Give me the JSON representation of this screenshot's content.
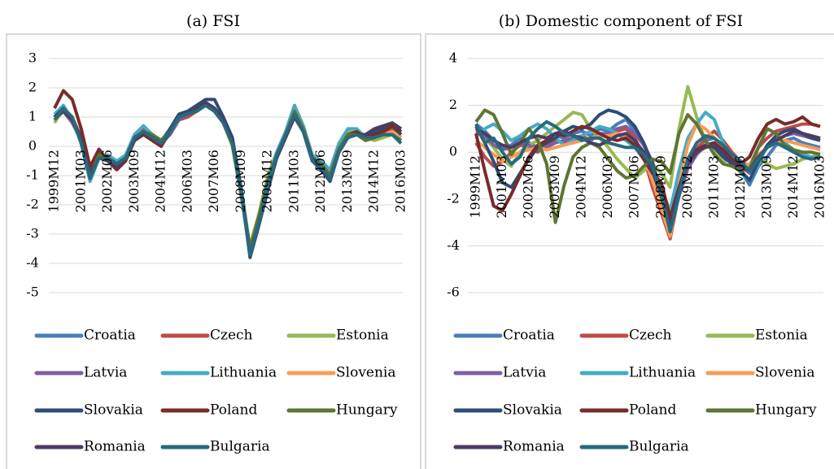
{
  "chart_data": [
    {
      "type": "line",
      "title": "(a) FSI",
      "categories": [
        "1999M12",
        null,
        null,
        "2001M03",
        null,
        null,
        "2002M06",
        null,
        null,
        "2003M09",
        null,
        null,
        "2004M12",
        null,
        null,
        "2006M03",
        null,
        null,
        "2007M06",
        null,
        null,
        "2008M09",
        null,
        null,
        "2009M12",
        null,
        null,
        "2011M03",
        null,
        null,
        "2012M06",
        null,
        null,
        "2013M09",
        null,
        null,
        "2014M12",
        null,
        null,
        "2016M03"
      ],
      "ylim": [
        -5,
        3
      ],
      "yticks": [
        -5,
        -4,
        -3,
        -2,
        -1,
        0,
        1,
        2,
        3
      ],
      "grid": true,
      "series": [
        {
          "name": "Croatia",
          "color": "#4a7ebb",
          "values": [
            1.0,
            1.3,
            0.9,
            0.2,
            -1.0,
            -0.3,
            -0.4,
            -0.6,
            -0.4,
            0.3,
            0.5,
            0.3,
            0.1,
            0.5,
            1.0,
            1.1,
            1.3,
            1.5,
            1.3,
            0.9,
            0.2,
            -1.5,
            -3.6,
            -2.5,
            -1.3,
            -0.3,
            0.4,
            1.2,
            0.6,
            -0.4,
            -0.6,
            -1.0,
            -0.1,
            0.4,
            0.5,
            0.2,
            0.3,
            0.4,
            0.5,
            0.3
          ]
        },
        {
          "name": "Czech",
          "color": "#be4b48",
          "values": [
            0.9,
            1.2,
            1.0,
            0.3,
            -0.9,
            -0.2,
            -0.5,
            -0.7,
            -0.3,
            0.2,
            0.6,
            0.2,
            0.0,
            0.6,
            0.9,
            1.0,
            1.2,
            1.4,
            1.2,
            0.8,
            0.1,
            -1.6,
            -3.5,
            -2.4,
            -1.2,
            -0.4,
            0.5,
            1.1,
            0.5,
            -0.3,
            -0.7,
            -1.1,
            -0.2,
            0.3,
            0.4,
            0.3,
            0.4,
            0.5,
            0.6,
            0.4
          ]
        },
        {
          "name": "Estonia",
          "color": "#98b954",
          "values": [
            0.8,
            1.3,
            1.0,
            0.1,
            -1.1,
            -0.4,
            -0.3,
            -0.5,
            -0.5,
            0.4,
            0.7,
            0.4,
            0.1,
            0.5,
            1.0,
            1.2,
            1.3,
            1.4,
            1.3,
            0.8,
            0.0,
            -1.7,
            -3.4,
            -2.3,
            -1.0,
            -0.2,
            0.5,
            1.4,
            0.7,
            -0.3,
            -0.5,
            -0.9,
            0.0,
            0.5,
            0.5,
            0.3,
            0.2,
            0.3,
            0.4,
            0.2
          ]
        },
        {
          "name": "Latvia",
          "color": "#7d5fa0",
          "values": [
            1.0,
            1.2,
            0.8,
            0.2,
            -1.0,
            -0.3,
            -0.5,
            -0.7,
            -0.4,
            0.2,
            0.4,
            0.3,
            0.1,
            0.4,
            0.9,
            1.1,
            1.3,
            1.5,
            1.2,
            0.8,
            0.1,
            -1.6,
            -3.7,
            -2.6,
            -1.4,
            -0.4,
            0.3,
            1.1,
            0.5,
            -0.5,
            -0.7,
            -1.1,
            -0.2,
            0.3,
            0.4,
            0.3,
            0.5,
            0.6,
            0.8,
            0.5
          ]
        },
        {
          "name": "Lithuania",
          "color": "#46aac5",
          "values": [
            1.1,
            1.4,
            0.9,
            0.1,
            -1.2,
            -0.4,
            -0.3,
            -0.5,
            -0.3,
            0.4,
            0.7,
            0.4,
            0.2,
            0.6,
            1.0,
            1.1,
            1.2,
            1.4,
            1.3,
            0.9,
            0.3,
            -1.4,
            -3.5,
            -2.4,
            -1.2,
            -0.2,
            0.5,
            1.4,
            0.7,
            -0.3,
            -0.5,
            -0.8,
            0.1,
            0.6,
            0.6,
            0.3,
            0.3,
            0.4,
            0.4,
            0.2
          ]
        },
        {
          "name": "Slovenia",
          "color": "#f59d56",
          "values": [
            0.9,
            1.2,
            0.9,
            0.2,
            -1.0,
            -0.3,
            -0.4,
            -0.6,
            -0.4,
            0.3,
            0.5,
            0.3,
            0.1,
            0.5,
            1.0,
            1.1,
            1.2,
            1.4,
            1.2,
            0.8,
            0.1,
            -1.6,
            -3.6,
            -2.5,
            -1.3,
            -0.3,
            0.4,
            1.2,
            0.6,
            -0.4,
            -0.6,
            -1.0,
            -0.1,
            0.4,
            0.5,
            0.3,
            0.3,
            0.4,
            0.5,
            0.3
          ]
        },
        {
          "name": "Slovakia",
          "color": "#2c4d75",
          "values": [
            1.0,
            1.3,
            0.9,
            0.3,
            -0.9,
            -0.3,
            -0.4,
            -0.6,
            -0.4,
            0.3,
            0.5,
            0.3,
            0.1,
            0.6,
            1.1,
            1.2,
            1.4,
            1.6,
            1.6,
            1.0,
            0.3,
            -1.5,
            -3.8,
            -2.7,
            -1.5,
            -0.4,
            0.3,
            1.0,
            0.5,
            -0.5,
            -0.8,
            -1.2,
            -0.2,
            0.3,
            0.4,
            0.3,
            0.5,
            0.6,
            0.7,
            0.4
          ]
        },
        {
          "name": "Poland",
          "color": "#772c2a",
          "values": [
            1.3,
            1.9,
            1.6,
            0.6,
            -0.7,
            -0.1,
            -0.5,
            -0.8,
            -0.5,
            0.2,
            0.4,
            0.2,
            0.0,
            0.5,
            1.0,
            1.1,
            1.3,
            1.4,
            1.2,
            0.8,
            0.1,
            -1.6,
            -3.5,
            -2.4,
            -1.2,
            -0.3,
            0.4,
            1.1,
            0.5,
            -0.4,
            -0.6,
            -1.0,
            -0.1,
            0.4,
            0.5,
            0.3,
            0.4,
            0.5,
            0.7,
            0.5
          ]
        },
        {
          "name": "Hungary",
          "color": "#5f7530",
          "values": [
            0.9,
            1.2,
            0.9,
            0.2,
            -1.0,
            -0.3,
            -0.4,
            -0.6,
            -0.4,
            0.3,
            0.5,
            0.4,
            0.2,
            0.5,
            1.0,
            1.1,
            1.2,
            1.4,
            1.2,
            0.8,
            0.1,
            -1.5,
            -3.5,
            -2.4,
            -1.2,
            -0.3,
            0.4,
            1.2,
            0.6,
            -0.4,
            -0.6,
            -1.0,
            -0.1,
            0.4,
            0.4,
            0.2,
            0.3,
            0.4,
            0.4,
            0.2
          ]
        },
        {
          "name": "Romania",
          "color": "#4d3b62",
          "values": [
            1.0,
            1.2,
            0.9,
            0.2,
            -1.0,
            -0.4,
            -0.5,
            -0.7,
            -0.4,
            0.2,
            0.5,
            0.3,
            0.1,
            0.5,
            1.0,
            1.1,
            1.3,
            1.5,
            1.3,
            0.9,
            0.2,
            -1.5,
            -3.7,
            -2.6,
            -1.3,
            -0.3,
            0.3,
            1.0,
            0.5,
            -0.4,
            -0.7,
            -1.1,
            -0.2,
            0.3,
            0.4,
            0.4,
            0.6,
            0.7,
            0.8,
            0.6
          ]
        },
        {
          "name": "Bulgaria",
          "color": "#276a7c",
          "values": [
            0.9,
            1.3,
            1.0,
            0.1,
            -1.1,
            -0.4,
            -0.4,
            -0.6,
            -0.4,
            0.3,
            0.5,
            0.3,
            0.1,
            0.5,
            1.0,
            1.1,
            1.2,
            1.4,
            1.2,
            0.8,
            0.1,
            -1.6,
            -3.7,
            -2.6,
            -1.3,
            -0.3,
            0.4,
            1.1,
            0.5,
            -0.5,
            -0.7,
            -1.1,
            -0.2,
            0.3,
            0.4,
            0.3,
            0.3,
            0.4,
            0.4,
            0.1
          ]
        }
      ]
    },
    {
      "type": "line",
      "title": "(b) Domestic component of FSI",
      "categories": [
        "1999M12",
        null,
        null,
        "2001M03",
        null,
        null,
        "2002M06",
        null,
        null,
        "2003M09",
        null,
        null,
        "2004M12",
        null,
        null,
        "2006M03",
        null,
        null,
        "2007M06",
        null,
        null,
        "2008M09",
        null,
        null,
        "2009M12",
        null,
        null,
        "2011M03",
        null,
        null,
        "2012M06",
        null,
        null,
        "2013M09",
        null,
        null,
        "2014M12",
        null,
        null,
        "2016M03"
      ],
      "ylim": [
        -6,
        4
      ],
      "yticks": [
        -6,
        -4,
        -2,
        0,
        2,
        4
      ],
      "grid": true,
      "series": [
        {
          "name": "Croatia",
          "color": "#4a7ebb",
          "values": [
            1.2,
            0.9,
            0.5,
            0.2,
            0.3,
            0.6,
            0.4,
            0.2,
            0.5,
            0.7,
            0.6,
            0.8,
            0.9,
            0.7,
            1.0,
            0.9,
            1.2,
            1.4,
            0.9,
            0.3,
            -0.5,
            -1.8,
            -3.0,
            -1.5,
            -0.5,
            0.2,
            0.5,
            0.6,
            0.2,
            -0.3,
            -0.8,
            -1.4,
            -0.6,
            -0.2,
            0.3,
            0.5,
            0.6,
            0.4,
            0.3,
            0.2
          ]
        },
        {
          "name": "Czech",
          "color": "#be4b48",
          "values": [
            0.4,
            -0.2,
            -0.6,
            -0.4,
            0.0,
            0.3,
            0.2,
            0.0,
            0.3,
            0.5,
            0.4,
            0.6,
            0.7,
            0.5,
            0.8,
            0.7,
            0.9,
            1.0,
            0.6,
            -0.2,
            -1.5,
            -2.6,
            -3.7,
            -1.8,
            -0.6,
            0.1,
            0.6,
            0.9,
            0.5,
            0.0,
            -0.4,
            -0.6,
            0.2,
            0.6,
            0.9,
            1.0,
            1.1,
            1.2,
            1.2,
            1.1
          ]
        },
        {
          "name": "Estonia",
          "color": "#98b954",
          "values": [
            1.1,
            0.6,
            0.2,
            -0.3,
            -0.6,
            0.0,
            0.3,
            0.5,
            0.8,
            1.1,
            1.4,
            1.7,
            1.6,
            1.0,
            0.6,
            0.2,
            -0.3,
            -0.7,
            -1.1,
            -0.8,
            -0.5,
            -0.9,
            -1.5,
            1.0,
            2.8,
            1.5,
            0.5,
            0.0,
            -0.4,
            -0.3,
            -0.5,
            -0.7,
            -0.2,
            -0.5,
            -0.7,
            -0.6,
            -0.5,
            -0.3,
            -0.2,
            -0.1
          ]
        },
        {
          "name": "Latvia",
          "color": "#7d5fa0",
          "values": [
            0.9,
            0.7,
            0.3,
            0.1,
            0.2,
            0.4,
            0.3,
            0.1,
            0.2,
            0.4,
            0.5,
            0.6,
            0.6,
            0.5,
            0.8,
            0.8,
            1.0,
            1.1,
            0.8,
            0.3,
            -0.4,
            -1.9,
            -3.3,
            -1.9,
            -0.7,
            -0.1,
            0.3,
            0.4,
            0.1,
            -0.3,
            -0.6,
            -0.9,
            -0.3,
            0.2,
            0.5,
            0.7,
            0.8,
            0.7,
            0.6,
            0.5
          ]
        },
        {
          "name": "Lithuania",
          "color": "#46aac5",
          "values": [
            0.7,
            1.0,
            1.2,
            0.9,
            0.5,
            0.7,
            1.0,
            1.2,
            1.0,
            0.6,
            0.3,
            0.5,
            0.7,
            0.9,
            1.1,
            1.0,
            0.8,
            0.5,
            0.2,
            -0.3,
            -0.9,
            -1.6,
            -2.5,
            -0.8,
            0.6,
            1.2,
            1.7,
            1.4,
            0.4,
            -0.3,
            -0.9,
            -1.2,
            -0.5,
            0.3,
            0.6,
            0.4,
            0.1,
            -0.1,
            -0.2,
            -0.3
          ]
        },
        {
          "name": "Slovenia",
          "color": "#f59d56",
          "values": [
            0.5,
            0.2,
            -0.1,
            -0.4,
            -0.2,
            0.0,
            0.1,
            0.2,
            0.1,
            0.2,
            0.3,
            0.4,
            0.5,
            0.6,
            0.7,
            0.7,
            0.8,
            0.7,
            0.4,
            -0.2,
            -1.2,
            -2.4,
            -3.6,
            -1.4,
            0.3,
            1.2,
            1.0,
            0.6,
            0.2,
            -0.3,
            -0.6,
            -0.5,
            -0.1,
            0.2,
            0.4,
            0.5,
            0.4,
            0.3,
            0.2,
            0.1
          ]
        },
        {
          "name": "Slovakia",
          "color": "#2c4d75",
          "values": [
            1.1,
            0.4,
            -0.4,
            -1.3,
            -1.5,
            -0.9,
            -0.3,
            0.2,
            0.4,
            0.6,
            0.9,
            1.1,
            1.0,
            1.2,
            1.6,
            1.8,
            1.7,
            1.5,
            1.1,
            0.4,
            -0.5,
            -1.7,
            -3.0,
            -1.5,
            -0.4,
            0.1,
            0.3,
            0.2,
            -0.2,
            -0.5,
            -0.8,
            -1.2,
            -0.4,
            0.3,
            0.7,
            0.9,
            1.0,
            0.8,
            0.6,
            0.5
          ]
        },
        {
          "name": "Poland",
          "color": "#772c2a",
          "values": [
            0.8,
            -0.8,
            -2.3,
            -2.5,
            -1.8,
            -1.0,
            -0.2,
            0.3,
            0.5,
            0.8,
            0.7,
            0.9,
            1.1,
            1.0,
            0.8,
            0.6,
            0.5,
            0.6,
            0.3,
            -0.3,
            -0.9,
            -1.3,
            -2.8,
            -1.5,
            -0.5,
            0.1,
            0.3,
            0.4,
            0.1,
            -0.3,
            -0.5,
            -0.2,
            0.6,
            1.2,
            1.4,
            1.2,
            1.3,
            1.5,
            1.2,
            1.1
          ]
        },
        {
          "name": "Hungary",
          "color": "#5f7530",
          "values": [
            1.3,
            1.8,
            1.6,
            0.8,
            -0.1,
            0.4,
            1.0,
            0.5,
            -0.5,
            -3.0,
            -1.4,
            -0.2,
            0.2,
            0.4,
            0.2,
            -0.3,
            -0.8,
            -1.1,
            -1.0,
            -0.6,
            -0.3,
            -0.4,
            -0.9,
            0.8,
            1.6,
            1.2,
            0.5,
            -0.1,
            -0.5,
            -0.6,
            -0.8,
            -0.7,
            0.2,
            1.0,
            0.8,
            0.3,
            0.1,
            0.0,
            0.0,
            -0.1
          ]
        },
        {
          "name": "Romania",
          "color": "#4d3b62",
          "values": [
            1.0,
            0.8,
            0.5,
            0.3,
            0.2,
            0.4,
            0.6,
            0.7,
            0.6,
            0.8,
            0.9,
            0.7,
            0.6,
            0.4,
            0.3,
            0.5,
            0.7,
            0.8,
            0.5,
            0.0,
            -0.8,
            -1.9,
            -3.2,
            -1.6,
            -0.5,
            0.0,
            0.2,
            0.3,
            0.0,
            -0.4,
            -0.6,
            -0.8,
            -0.2,
            0.2,
            0.5,
            0.7,
            0.9,
            0.8,
            0.7,
            0.6
          ]
        },
        {
          "name": "Bulgaria",
          "color": "#276a7c",
          "values": [
            1.2,
            0.4,
            0.6,
            0.0,
            -0.5,
            -0.2,
            0.6,
            1.0,
            1.3,
            1.1,
            0.8,
            0.7,
            0.5,
            0.6,
            0.6,
            0.4,
            0.3,
            0.2,
            0.2,
            -0.1,
            -0.6,
            -1.8,
            -3.4,
            -1.8,
            -0.3,
            0.4,
            0.7,
            0.6,
            0.3,
            -0.1,
            -0.4,
            -0.8,
            -0.3,
            0.2,
            0.4,
            0.2,
            0.0,
            -0.2,
            -0.3,
            -0.2
          ]
        }
      ]
    }
  ]
}
